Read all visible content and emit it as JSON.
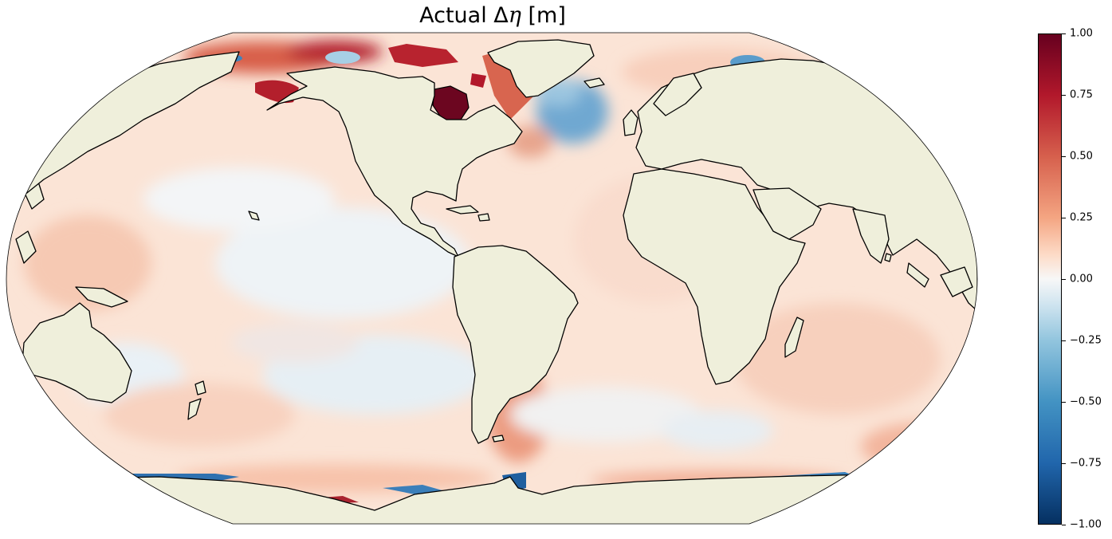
{
  "title": {
    "prefix": "Actual Δ",
    "symbol": "η",
    "suffix": " [m]"
  },
  "colorbar": {
    "colormap": "RdBu_r",
    "range": [
      -1.0,
      1.0
    ],
    "ticks": [
      "1.00",
      "0.75",
      "0.50",
      "0.25",
      "0.00",
      "−0.25",
      "−0.50",
      "−0.75",
      "−1.00"
    ]
  },
  "map": {
    "projection": "Robinson",
    "land_color": "#efefdb",
    "coastline_color": "#000000",
    "ocean_neutral_color": "#f7f7f7"
  }
}
